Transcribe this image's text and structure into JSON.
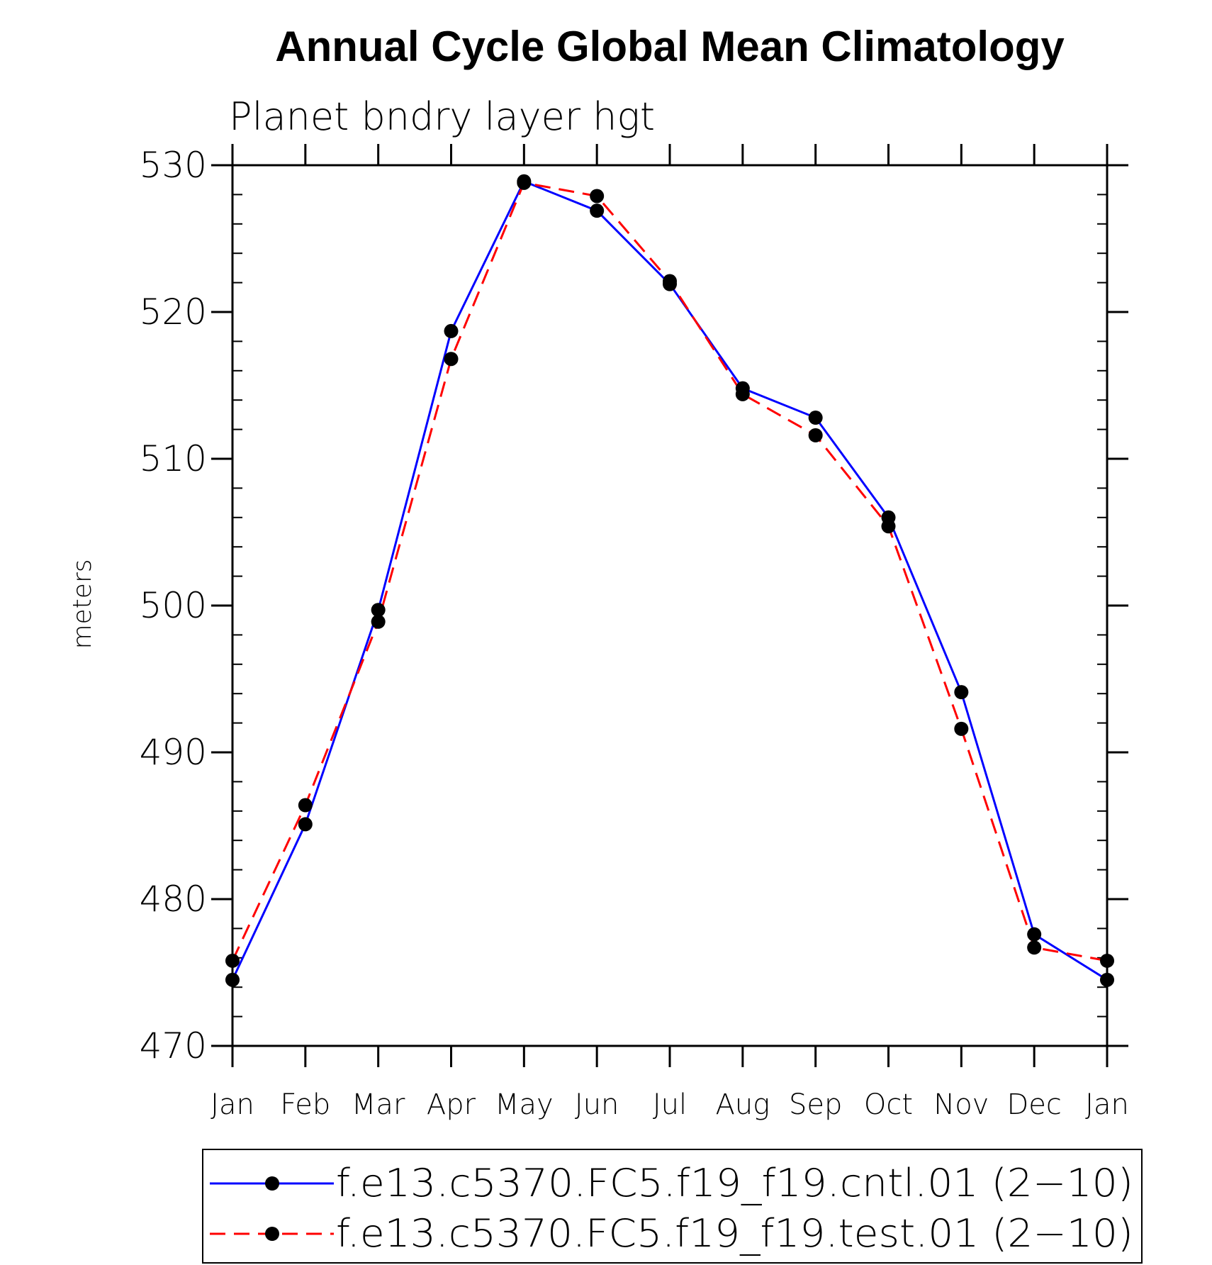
{
  "chart_data": {
    "type": "line",
    "title": "Annual Cycle Global Mean Climatology",
    "subtitle": "Planet bndry layer hgt",
    "xlabel": "",
    "ylabel": "meters",
    "categories": [
      "Jan",
      "Feb",
      "Mar",
      "Apr",
      "May",
      "Jun",
      "Jul",
      "Aug",
      "Sep",
      "Oct",
      "Nov",
      "Dec",
      "Jan"
    ],
    "ylim": [
      470,
      530
    ],
    "yticks": [
      "470",
      "480",
      "490",
      "500",
      "510",
      "520",
      "530"
    ],
    "grid": false,
    "legend_position": "bottom",
    "series": [
      {
        "name": "f.e13.c5370.FC5.f19_f19.cntl.01 (2−10)",
        "color": "#0000ff",
        "line_style": "solid",
        "marker": "filled-circle",
        "values": [
          474.5,
          485.1,
          499.7,
          518.7,
          528.9,
          526.9,
          521.9,
          514.8,
          512.8,
          506.0,
          494.1,
          477.6,
          474.5
        ]
      },
      {
        "name": "f.e13.c5370.FC5.f19_f19.test.01 (2−10)",
        "color": "#ff0000",
        "line_style": "dashed",
        "marker": "filled-circle",
        "values": [
          475.8,
          486.4,
          498.9,
          516.8,
          528.8,
          527.9,
          522.1,
          514.4,
          511.6,
          505.4,
          491.6,
          476.7,
          475.8
        ]
      }
    ]
  }
}
